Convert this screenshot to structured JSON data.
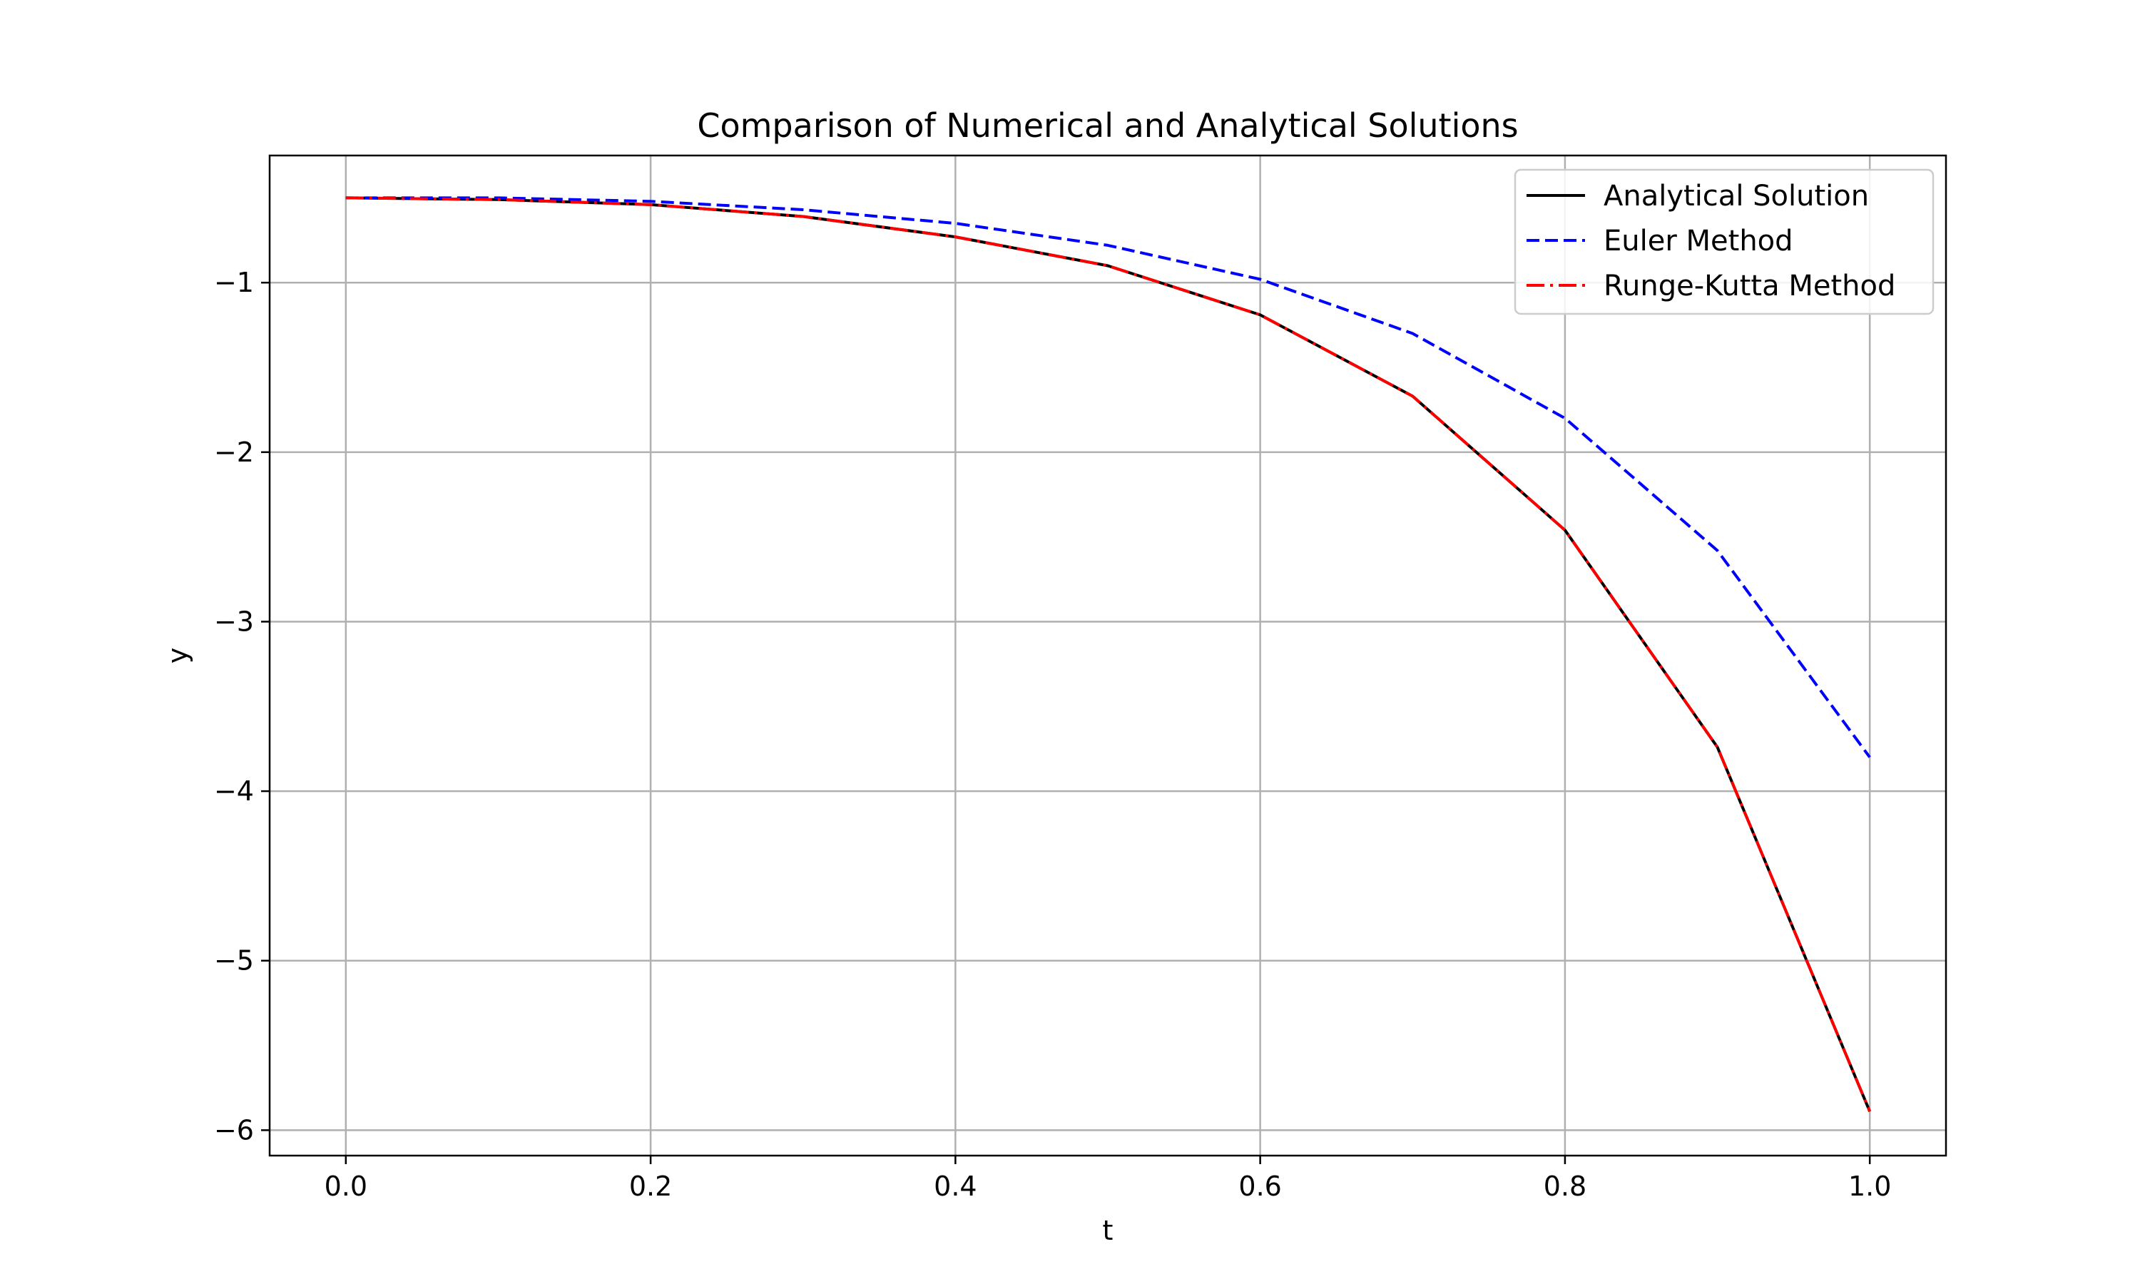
{
  "chart_data": {
    "type": "line",
    "title": "Comparison of Numerical and Analytical Solutions",
    "xlabel": "t",
    "ylabel": "y",
    "xlim": [
      -0.05,
      1.05
    ],
    "ylim": [
      -6.15,
      -0.25
    ],
    "xticks": [
      0.0,
      0.2,
      0.4,
      0.6,
      0.8,
      1.0
    ],
    "xtick_labels": [
      "0.0",
      "0.2",
      "0.4",
      "0.6",
      "0.8",
      "1.0"
    ],
    "yticks": [
      -1,
      -2,
      -3,
      -4,
      -5,
      -6
    ],
    "ytick_labels": [
      "−1",
      "−2",
      "−3",
      "−4",
      "−5",
      "−6"
    ],
    "grid": true,
    "legend_position": "top-right",
    "x": [
      0.0,
      0.1,
      0.2,
      0.3,
      0.4,
      0.5,
      0.6,
      0.7,
      0.8,
      0.9,
      1.0
    ],
    "series": [
      {
        "name": "Analytical Solution",
        "color": "#000000",
        "style": "solid",
        "values": [
          -0.5,
          -0.51,
          -0.54,
          -0.61,
          -0.73,
          -0.9,
          -1.19,
          -1.67,
          -2.46,
          -3.74,
          -5.89
        ]
      },
      {
        "name": "Euler Method",
        "color": "#0000ff",
        "style": "dashed",
        "values": [
          -0.5,
          -0.5,
          -0.52,
          -0.57,
          -0.65,
          -0.78,
          -0.98,
          -1.3,
          -1.8,
          -2.58,
          -3.8
        ]
      },
      {
        "name": "Runge-Kutta Method",
        "color": "#ff0000",
        "style": "dashdot",
        "values": [
          -0.5,
          -0.51,
          -0.54,
          -0.61,
          -0.73,
          -0.9,
          -1.19,
          -1.67,
          -2.46,
          -3.74,
          -5.89
        ]
      }
    ]
  }
}
